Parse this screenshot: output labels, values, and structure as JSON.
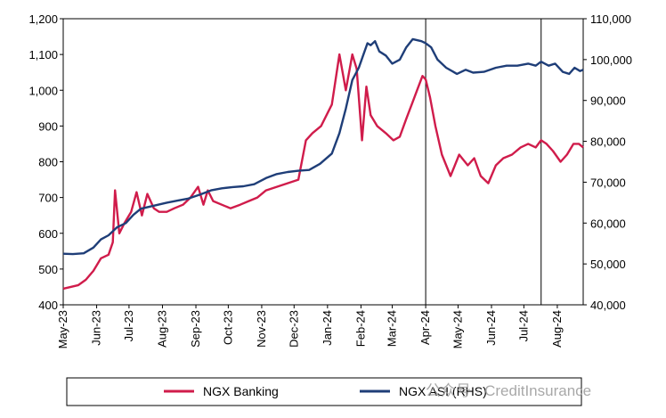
{
  "chart_data": {
    "type": "line",
    "title": "",
    "x_ticks": [
      "May-23",
      "Jun-23",
      "Jul-23",
      "Aug-23",
      "Sep-23",
      "Oct-23",
      "Nov-23",
      "Dec-23",
      "Jan-24",
      "Feb-24",
      "Mar-24",
      "Apr-24",
      "May-24",
      "Jun-24",
      "Jul-24",
      "Aug-24"
    ],
    "x_range": [
      "2023-05-01",
      "2024-08-25"
    ],
    "y_left": {
      "min": 400,
      "max": 1200,
      "ticks": [
        "400",
        "500",
        "600",
        "700",
        "800",
        "900",
        "1,000",
        "1,100",
        "1,200"
      ]
    },
    "y_right": {
      "min": 40000,
      "max": 110000,
      "ticks": [
        "40,000",
        "50,000",
        "60,000",
        "70,000",
        "80,000",
        "90,000",
        "100,000",
        "110,000"
      ]
    },
    "vertical_lines": [
      "2024-04-01",
      "2024-07-17"
    ],
    "legend": {
      "position": "bottom"
    },
    "series": [
      {
        "name": "NGX Banking",
        "axis": "left",
        "color": "#d01c4b",
        "x": [
          "2023-05-01",
          "2023-05-08",
          "2023-05-15",
          "2023-05-22",
          "2023-05-29",
          "2023-06-05",
          "2023-06-12",
          "2023-06-16",
          "2023-06-18",
          "2023-06-22",
          "2023-06-27",
          "2023-07-03",
          "2023-07-08",
          "2023-07-13",
          "2023-07-18",
          "2023-07-24",
          "2023-07-29",
          "2023-08-05",
          "2023-08-12",
          "2023-08-20",
          "2023-08-27",
          "2023-09-03",
          "2023-09-08",
          "2023-09-12",
          "2023-09-17",
          "2023-09-25",
          "2023-10-03",
          "2023-10-12",
          "2023-10-20",
          "2023-10-28",
          "2023-11-05",
          "2023-11-15",
          "2023-11-25",
          "2023-12-05",
          "2023-12-12",
          "2023-12-18",
          "2023-12-26",
          "2024-01-05",
          "2024-01-12",
          "2024-01-18",
          "2024-01-24",
          "2024-01-28",
          "2024-02-02",
          "2024-02-06",
          "2024-02-10",
          "2024-02-16",
          "2024-02-24",
          "2024-03-02",
          "2024-03-08",
          "2024-03-14",
          "2024-03-19",
          "2024-03-24",
          "2024-03-29",
          "2024-04-01",
          "2024-04-05",
          "2024-04-10",
          "2024-04-16",
          "2024-04-24",
          "2024-05-02",
          "2024-05-10",
          "2024-05-16",
          "2024-05-22",
          "2024-05-29",
          "2024-06-05",
          "2024-06-12",
          "2024-06-20",
          "2024-06-28",
          "2024-07-05",
          "2024-07-12",
          "2024-07-17",
          "2024-07-22",
          "2024-07-28",
          "2024-08-04",
          "2024-08-10",
          "2024-08-16",
          "2024-08-21",
          "2024-08-25"
        ],
        "values": [
          445,
          450,
          455,
          470,
          495,
          530,
          540,
          575,
          720,
          600,
          630,
          660,
          715,
          650,
          710,
          670,
          660,
          660,
          670,
          680,
          700,
          730,
          680,
          720,
          690,
          680,
          670,
          680,
          690,
          700,
          720,
          730,
          740,
          750,
          860,
          880,
          900,
          960,
          1100,
          1000,
          1100,
          1060,
          860,
          1010,
          930,
          900,
          880,
          860,
          870,
          920,
          960,
          1000,
          1040,
          1030,
          980,
          900,
          820,
          760,
          820,
          790,
          810,
          760,
          740,
          790,
          810,
          820,
          840,
          850,
          840,
          860,
          850,
          830,
          800,
          820,
          850,
          850,
          840
        ]
      },
      {
        "name": "NGX ASI (RHS)",
        "axis": "right",
        "color": "#1f3e78",
        "x": [
          "2023-05-01",
          "2023-05-10",
          "2023-05-20",
          "2023-05-29",
          "2023-06-05",
          "2023-06-12",
          "2023-06-20",
          "2023-06-28",
          "2023-07-05",
          "2023-07-12",
          "2023-07-20",
          "2023-07-28",
          "2023-08-05",
          "2023-08-15",
          "2023-08-25",
          "2023-09-05",
          "2023-09-15",
          "2023-09-25",
          "2023-10-05",
          "2023-10-15",
          "2023-10-25",
          "2023-11-05",
          "2023-11-15",
          "2023-11-25",
          "2023-12-05",
          "2023-12-15",
          "2023-12-25",
          "2024-01-05",
          "2024-01-12",
          "2024-01-18",
          "2024-01-24",
          "2024-01-30",
          "2024-02-03",
          "2024-02-07",
          "2024-02-10",
          "2024-02-14",
          "2024-02-18",
          "2024-02-24",
          "2024-03-01",
          "2024-03-08",
          "2024-03-14",
          "2024-03-20",
          "2024-03-28",
          "2024-04-01",
          "2024-04-06",
          "2024-04-12",
          "2024-04-20",
          "2024-04-30",
          "2024-05-08",
          "2024-05-15",
          "2024-05-25",
          "2024-06-05",
          "2024-06-15",
          "2024-06-25",
          "2024-07-05",
          "2024-07-12",
          "2024-07-17",
          "2024-07-24",
          "2024-07-30",
          "2024-08-06",
          "2024-08-12",
          "2024-08-17",
          "2024-08-22",
          "2024-08-25"
        ],
        "values": [
          52500,
          52400,
          52600,
          54000,
          56000,
          57000,
          59000,
          60000,
          62000,
          63500,
          64000,
          64500,
          65000,
          65500,
          66000,
          67000,
          68000,
          68500,
          68800,
          69000,
          69500,
          71000,
          72000,
          72500,
          72800,
          73000,
          74500,
          77000,
          82000,
          88000,
          95000,
          98000,
          101000,
          104000,
          103500,
          104500,
          102000,
          101000,
          99000,
          100000,
          103000,
          105000,
          104500,
          104000,
          103000,
          100000,
          98000,
          96500,
          97500,
          96800,
          97000,
          98000,
          98500,
          98500,
          99000,
          98500,
          99500,
          98500,
          99000,
          97000,
          96500,
          98000,
          97200,
          97500
        ]
      }
    ],
    "watermark": "公众号 · CreditInsurance"
  }
}
